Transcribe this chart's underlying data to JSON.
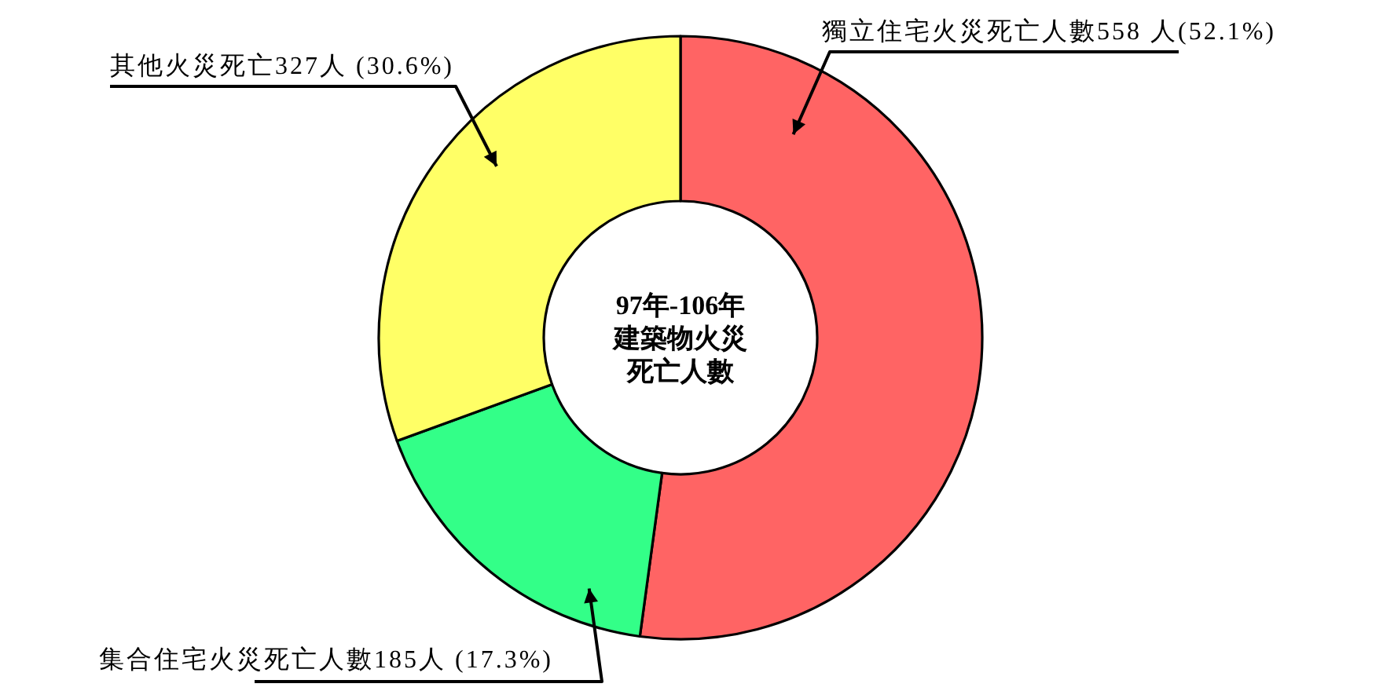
{
  "chart_data": {
    "type": "donut",
    "title": "97年-106年建築物火災死亡人數",
    "categories": [
      "獨立住宅火災死亡人數558 人(52.1%)",
      "集合住宅火災死亡人數185人 (17.3%)",
      "其他火災死亡327人 (30.6%)"
    ],
    "values": [
      558,
      185,
      327
    ],
    "colors": [
      "#ff6464",
      "#33ff88",
      "#ffff66"
    ]
  }
}
